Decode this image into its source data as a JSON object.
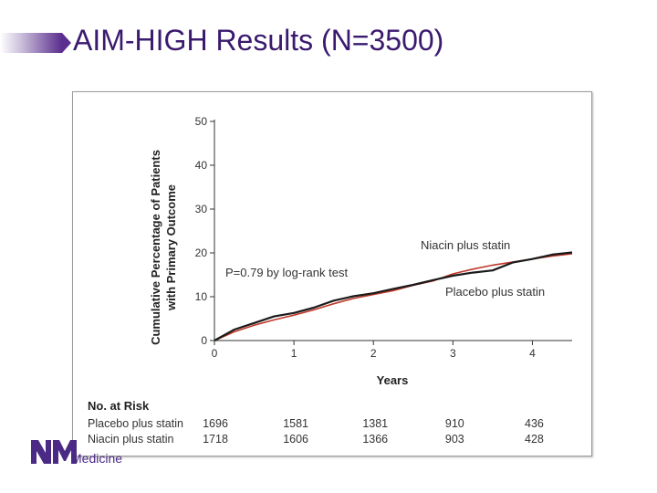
{
  "slide": {
    "title": "AIM-HIGH Results (N=3500)",
    "logo_text": "Medicine",
    "accent_color": "#5b2d8e"
  },
  "chart_data": {
    "type": "line",
    "ylabel_line1": "Cumulative Percentage of Patients",
    "ylabel_line2": "with Primary Outcome",
    "xlabel": "Years",
    "xlim": [
      0,
      4.5
    ],
    "ylim": [
      0,
      50
    ],
    "xticks": [
      0,
      1,
      2,
      3,
      4
    ],
    "yticks": [
      0,
      10,
      20,
      30,
      40,
      50
    ],
    "annotation": "P=0.79 by log-rank test",
    "series": [
      {
        "name": "Niacin plus statin",
        "color": "#c0392b",
        "x": [
          0,
          0.25,
          0.5,
          0.75,
          1.0,
          1.25,
          1.5,
          1.75,
          2.0,
          2.25,
          2.5,
          2.75,
          3.0,
          3.25,
          3.5,
          3.75,
          4.0,
          4.25,
          4.5
        ],
        "y": [
          0,
          2.0,
          3.5,
          4.7,
          5.8,
          7.0,
          8.4,
          9.6,
          10.5,
          11.4,
          12.6,
          13.6,
          15.2,
          16.3,
          17.2,
          17.9,
          18.6,
          19.3,
          19.8
        ]
      },
      {
        "name": "Placebo plus statin",
        "color": "#1a1a1a",
        "x": [
          0,
          0.25,
          0.5,
          0.75,
          1.0,
          1.25,
          1.5,
          1.75,
          2.0,
          2.25,
          2.5,
          2.75,
          3.0,
          3.25,
          3.5,
          3.75,
          4.0,
          4.25,
          4.5
        ],
        "y": [
          0,
          2.5,
          4.0,
          5.5,
          6.3,
          7.5,
          9.1,
          10.1,
          10.8,
          11.8,
          12.7,
          13.8,
          14.8,
          15.5,
          16.0,
          17.8,
          18.6,
          19.6,
          20.1
        ]
      }
    ],
    "line_labels": {
      "niacin": "Niacin plus statin",
      "placebo": "Placebo plus statin"
    },
    "at_risk": {
      "title": "No. at Risk",
      "rows": [
        {
          "label": "Placebo plus statin",
          "values": [
            1696,
            1581,
            1381,
            910,
            436
          ]
        },
        {
          "label": "Niacin plus statin",
          "values": [
            1718,
            1606,
            1366,
            903,
            428
          ]
        }
      ]
    }
  }
}
